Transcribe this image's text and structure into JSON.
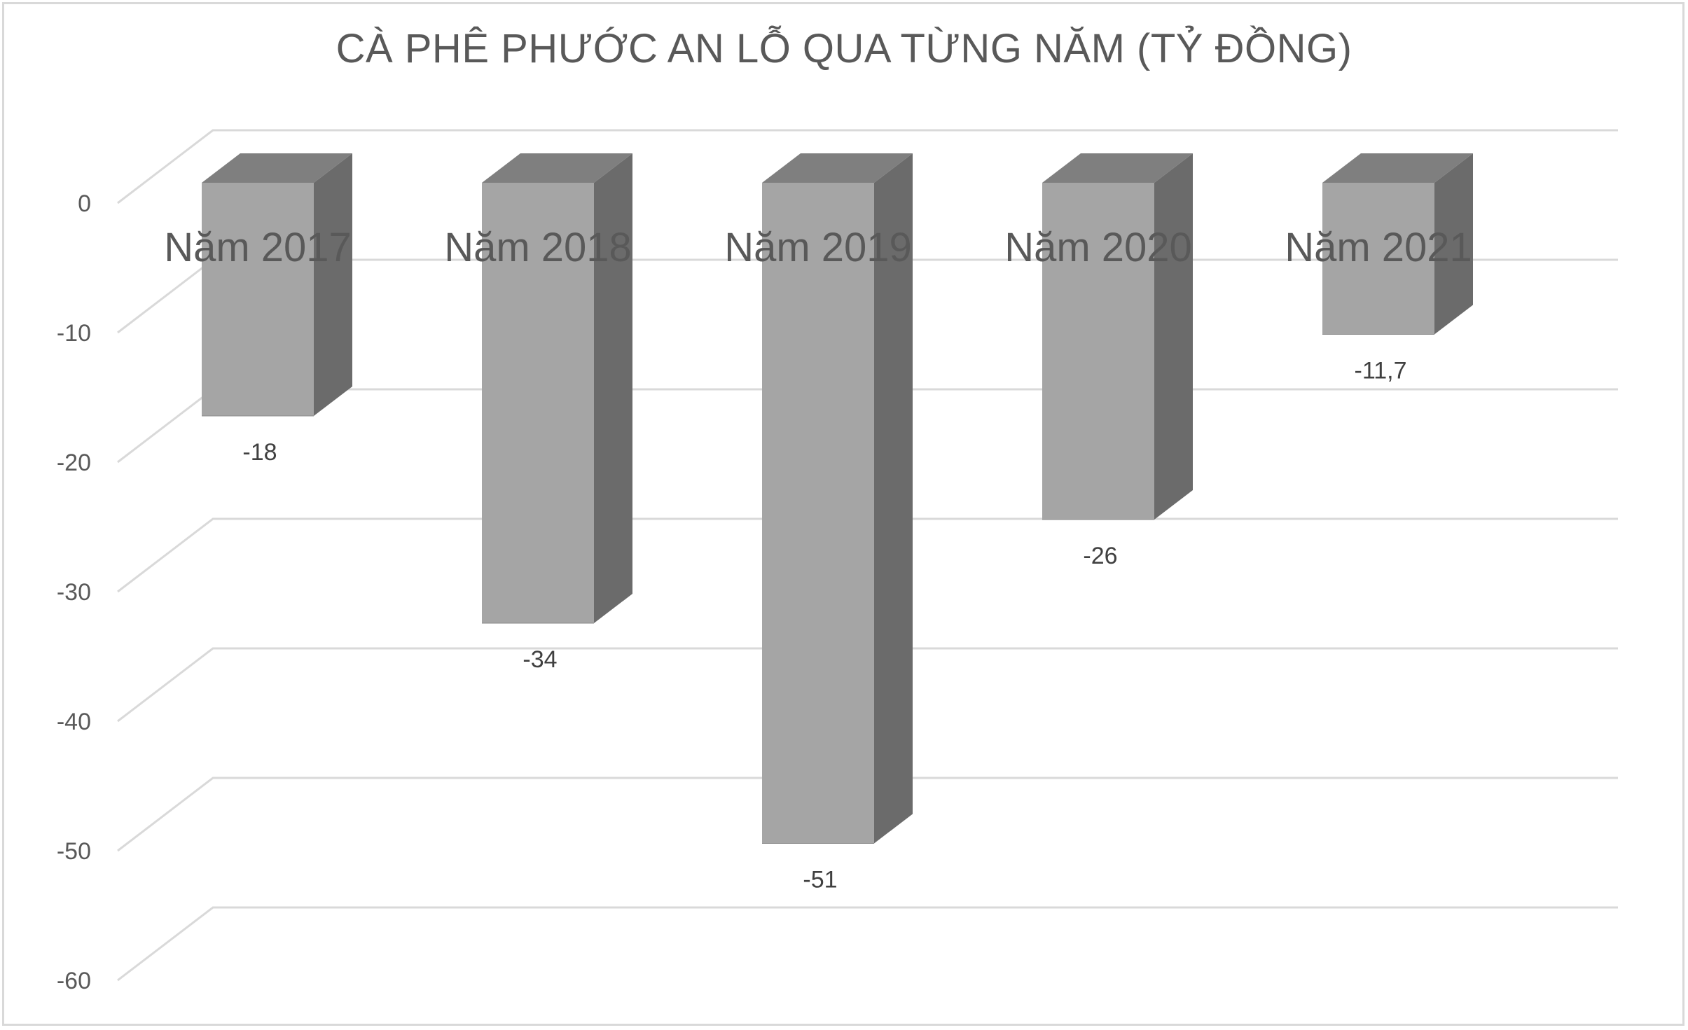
{
  "chart_data": {
    "type": "bar",
    "title": "CÀ PHÊ PHƯỚC AN LỖ QUA TỪNG NĂM (TỶ ĐỒNG)",
    "categories": [
      "Năm 2017",
      "Năm 2018",
      "Năm 2019",
      "Năm 2020",
      "Năm 2021"
    ],
    "series": [
      {
        "values": [
          -18,
          -34,
          -51,
          -26,
          -11.7
        ]
      }
    ],
    "data_labels": [
      "-18",
      "-34",
      "-51",
      "-26",
      "-11,7"
    ],
    "yticks": [
      0,
      -10,
      -20,
      -30,
      -40,
      -50,
      -60
    ],
    "ytick_labels": [
      "0",
      "-10",
      "-20",
      "-30",
      "-40",
      "-50",
      "-60"
    ],
    "ylim": [
      -60,
      0
    ],
    "grid": true,
    "legend": "none",
    "style": "3d-column",
    "colors": {
      "bar_front": "#a5a5a5",
      "bar_side": "#6b6b6b",
      "bar_top": "#7f7f7f",
      "gridline": "#d9d9d9",
      "text": "#595959"
    }
  }
}
